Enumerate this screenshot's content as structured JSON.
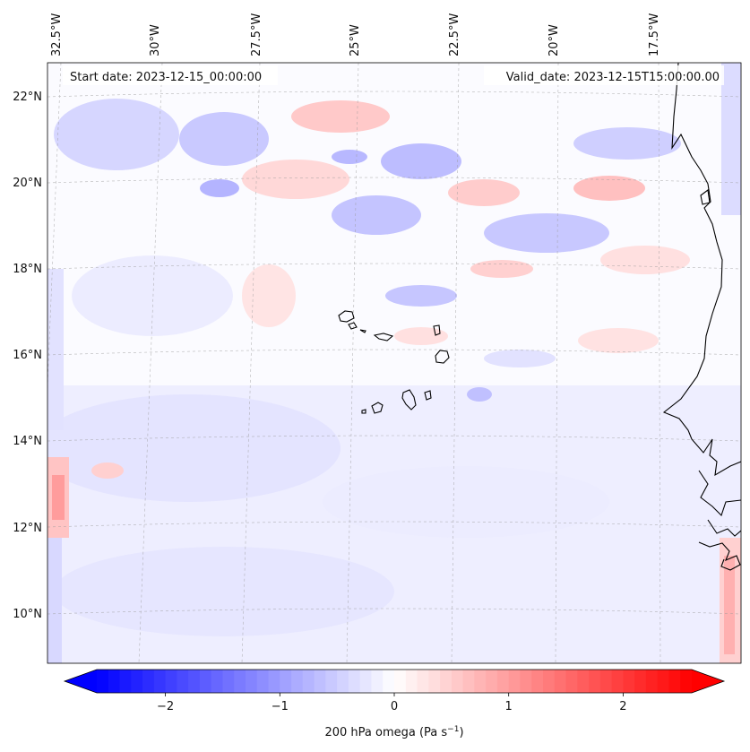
{
  "map": {
    "start_date": "Start date: 2023-12-15_00:00:00",
    "valid_date": "Valid_date: 2023-12-15T15:00:00.00",
    "lon_labels": [
      "32.5°W",
      "30°W",
      "27.5°W",
      "25°W",
      "22.5°W",
      "20°W",
      "17.5°W"
    ],
    "lat_labels": [
      "22°N",
      "20°N",
      "18°N",
      "16°N",
      "14°N",
      "12°N",
      "10°N"
    ],
    "field": "200 hPa omega",
    "colormap": "bwr",
    "colors": {
      "negative": "#0000ff",
      "zero": "#ffffff",
      "positive": "#ff0000",
      "coast": "#000000"
    }
  },
  "colorbar": {
    "label_main": "200 hPa omega (Pa s",
    "label_exp": "−1",
    "label_close": ")",
    "ticks": [
      "−2",
      "−1",
      "0",
      "1",
      "2"
    ],
    "tick_values": [
      -2,
      -1,
      0,
      1,
      2
    ],
    "range": [
      -2.6,
      2.6
    ],
    "levels": 52,
    "extend": "both"
  }
}
